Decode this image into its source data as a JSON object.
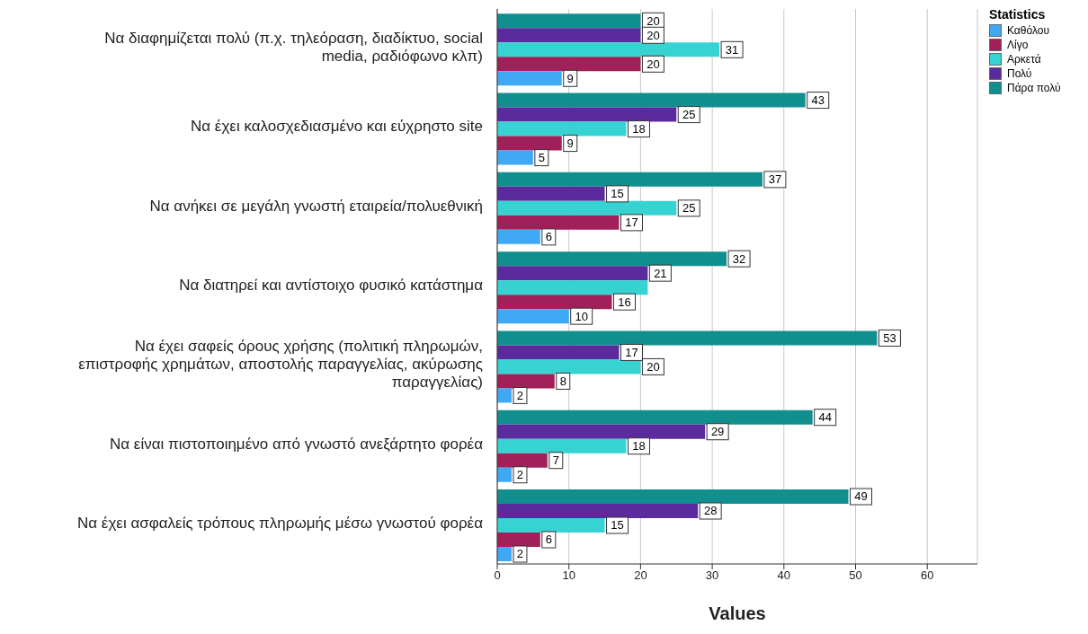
{
  "chart_data": {
    "type": "bar",
    "orientation": "horizontal",
    "xlabel": "Values",
    "legend_title": "Statistics",
    "legend": "top right",
    "grid": "x",
    "categories": [
      "Να διαφημίζεται πολύ (π.χ. τηλεόραση, διαδίκτυο, social media, ραδιόφωνο κλπ)",
      "Να έχει καλοσχεδιασμένο και εύχρηστο site",
      "Να ανήκει σε μεγάλη γνωστή εταιρεία/πολυεθνική",
      "Να διατηρεί και αντίστοιχο φυσικό κατάστημα",
      "Να έχει σαφείς όρους χρήσης (πολιτική πληρωμών, επιστροφής χρημάτων, αποστολής παραγγελίας, ακύρωσης παραγγελίας)",
      "Να είναι πιστοποιημένο από γνωστό ανεξάρτητο φορέα",
      "Να έχει ασφαλείς τρόπους πληρωμής μέσω γνωστού φορέα"
    ],
    "series": [
      {
        "name": "Καθόλου",
        "color": "#3fa9f5",
        "values": [
          9,
          5,
          6,
          10,
          2,
          2,
          2
        ],
        "value_labels": [
          "9",
          "5",
          "6",
          "10",
          "2",
          "2",
          "2"
        ]
      },
      {
        "name": "Λίγο",
        "color": "#a2205a",
        "values": [
          20,
          9,
          17,
          16,
          8,
          7,
          6
        ],
        "value_labels": [
          "20",
          "9",
          "17",
          "16",
          "8",
          "7",
          "6"
        ]
      },
      {
        "name": "Αρκετά",
        "color": "#37d3d3",
        "values": [
          31,
          18,
          25,
          21,
          20,
          18,
          15
        ],
        "value_labels": [
          "31",
          "18",
          "25",
          null,
          "20",
          "18",
          "15"
        ]
      },
      {
        "name": "Πολύ",
        "color": "#5b2b9e",
        "values": [
          20,
          25,
          15,
          21,
          17,
          29,
          28
        ],
        "value_labels": [
          "20",
          "25",
          "15",
          "21",
          "17",
          "29",
          "28"
        ]
      },
      {
        "name": "Πάρα πολύ",
        "color": "#118f8f",
        "values": [
          20,
          43,
          37,
          32,
          53,
          44,
          49
        ],
        "value_labels": [
          "20",
          "43",
          "37",
          "32",
          "53",
          "44",
          "49"
        ]
      }
    ],
    "xlim": [
      0,
      67
    ],
    "xticks": [
      0,
      10,
      20,
      30,
      40,
      50,
      60
    ]
  }
}
